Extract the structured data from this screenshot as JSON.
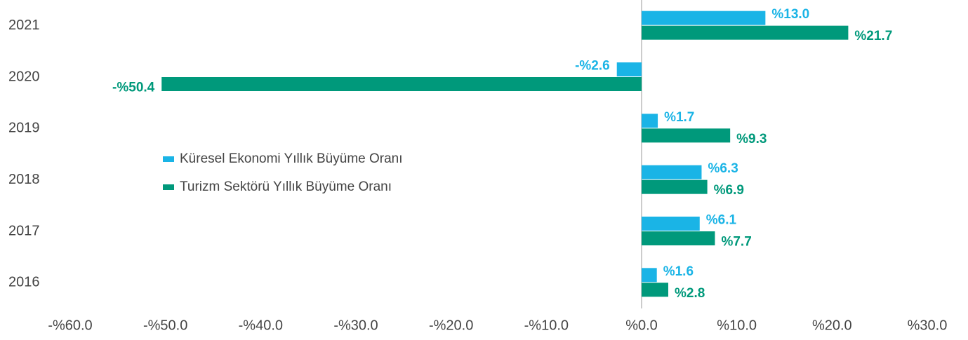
{
  "chart_data": {
    "type": "hbar",
    "categories": [
      "2021",
      "2020",
      "2019",
      "2018",
      "2017",
      "2016"
    ],
    "series": [
      {
        "name": "Küresel Ekonomi Yıllık Büyüme Oranı",
        "color": "#1ab4e6",
        "values": [
          13.0,
          -2.6,
          1.7,
          6.3,
          6.1,
          1.6
        ],
        "value_labels": [
          "%13.0",
          "-%2.6",
          "%1.7",
          "%6.3",
          "%6.1",
          "%1.6"
        ]
      },
      {
        "name": "Turizm Sektörü Yıllık Büyüme Oranı",
        "color": "#00997b",
        "values": [
          21.7,
          -50.4,
          9.3,
          6.9,
          7.7,
          2.8
        ],
        "value_labels": [
          "%21.7",
          "-%50.4",
          "%9.3",
          "%6.9",
          "%7.7",
          "%2.8"
        ]
      }
    ],
    "xlim": [
      -60,
      30
    ],
    "xticks": [
      {
        "value": -60,
        "label": "-%60.0"
      },
      {
        "value": -50,
        "label": "-%50.0"
      },
      {
        "value": -40,
        "label": "-%40.0"
      },
      {
        "value": -30,
        "label": "-%30.0"
      },
      {
        "value": -20,
        "label": "-%20.0"
      },
      {
        "value": -10,
        "label": "-%10.0"
      },
      {
        "value": 0,
        "label": "%0.0"
      },
      {
        "value": 10,
        "label": "%10.0"
      },
      {
        "value": 20,
        "label": "%20.0"
      },
      {
        "value": 30,
        "label": "%30.0"
      }
    ],
    "legend": "center-left"
  }
}
